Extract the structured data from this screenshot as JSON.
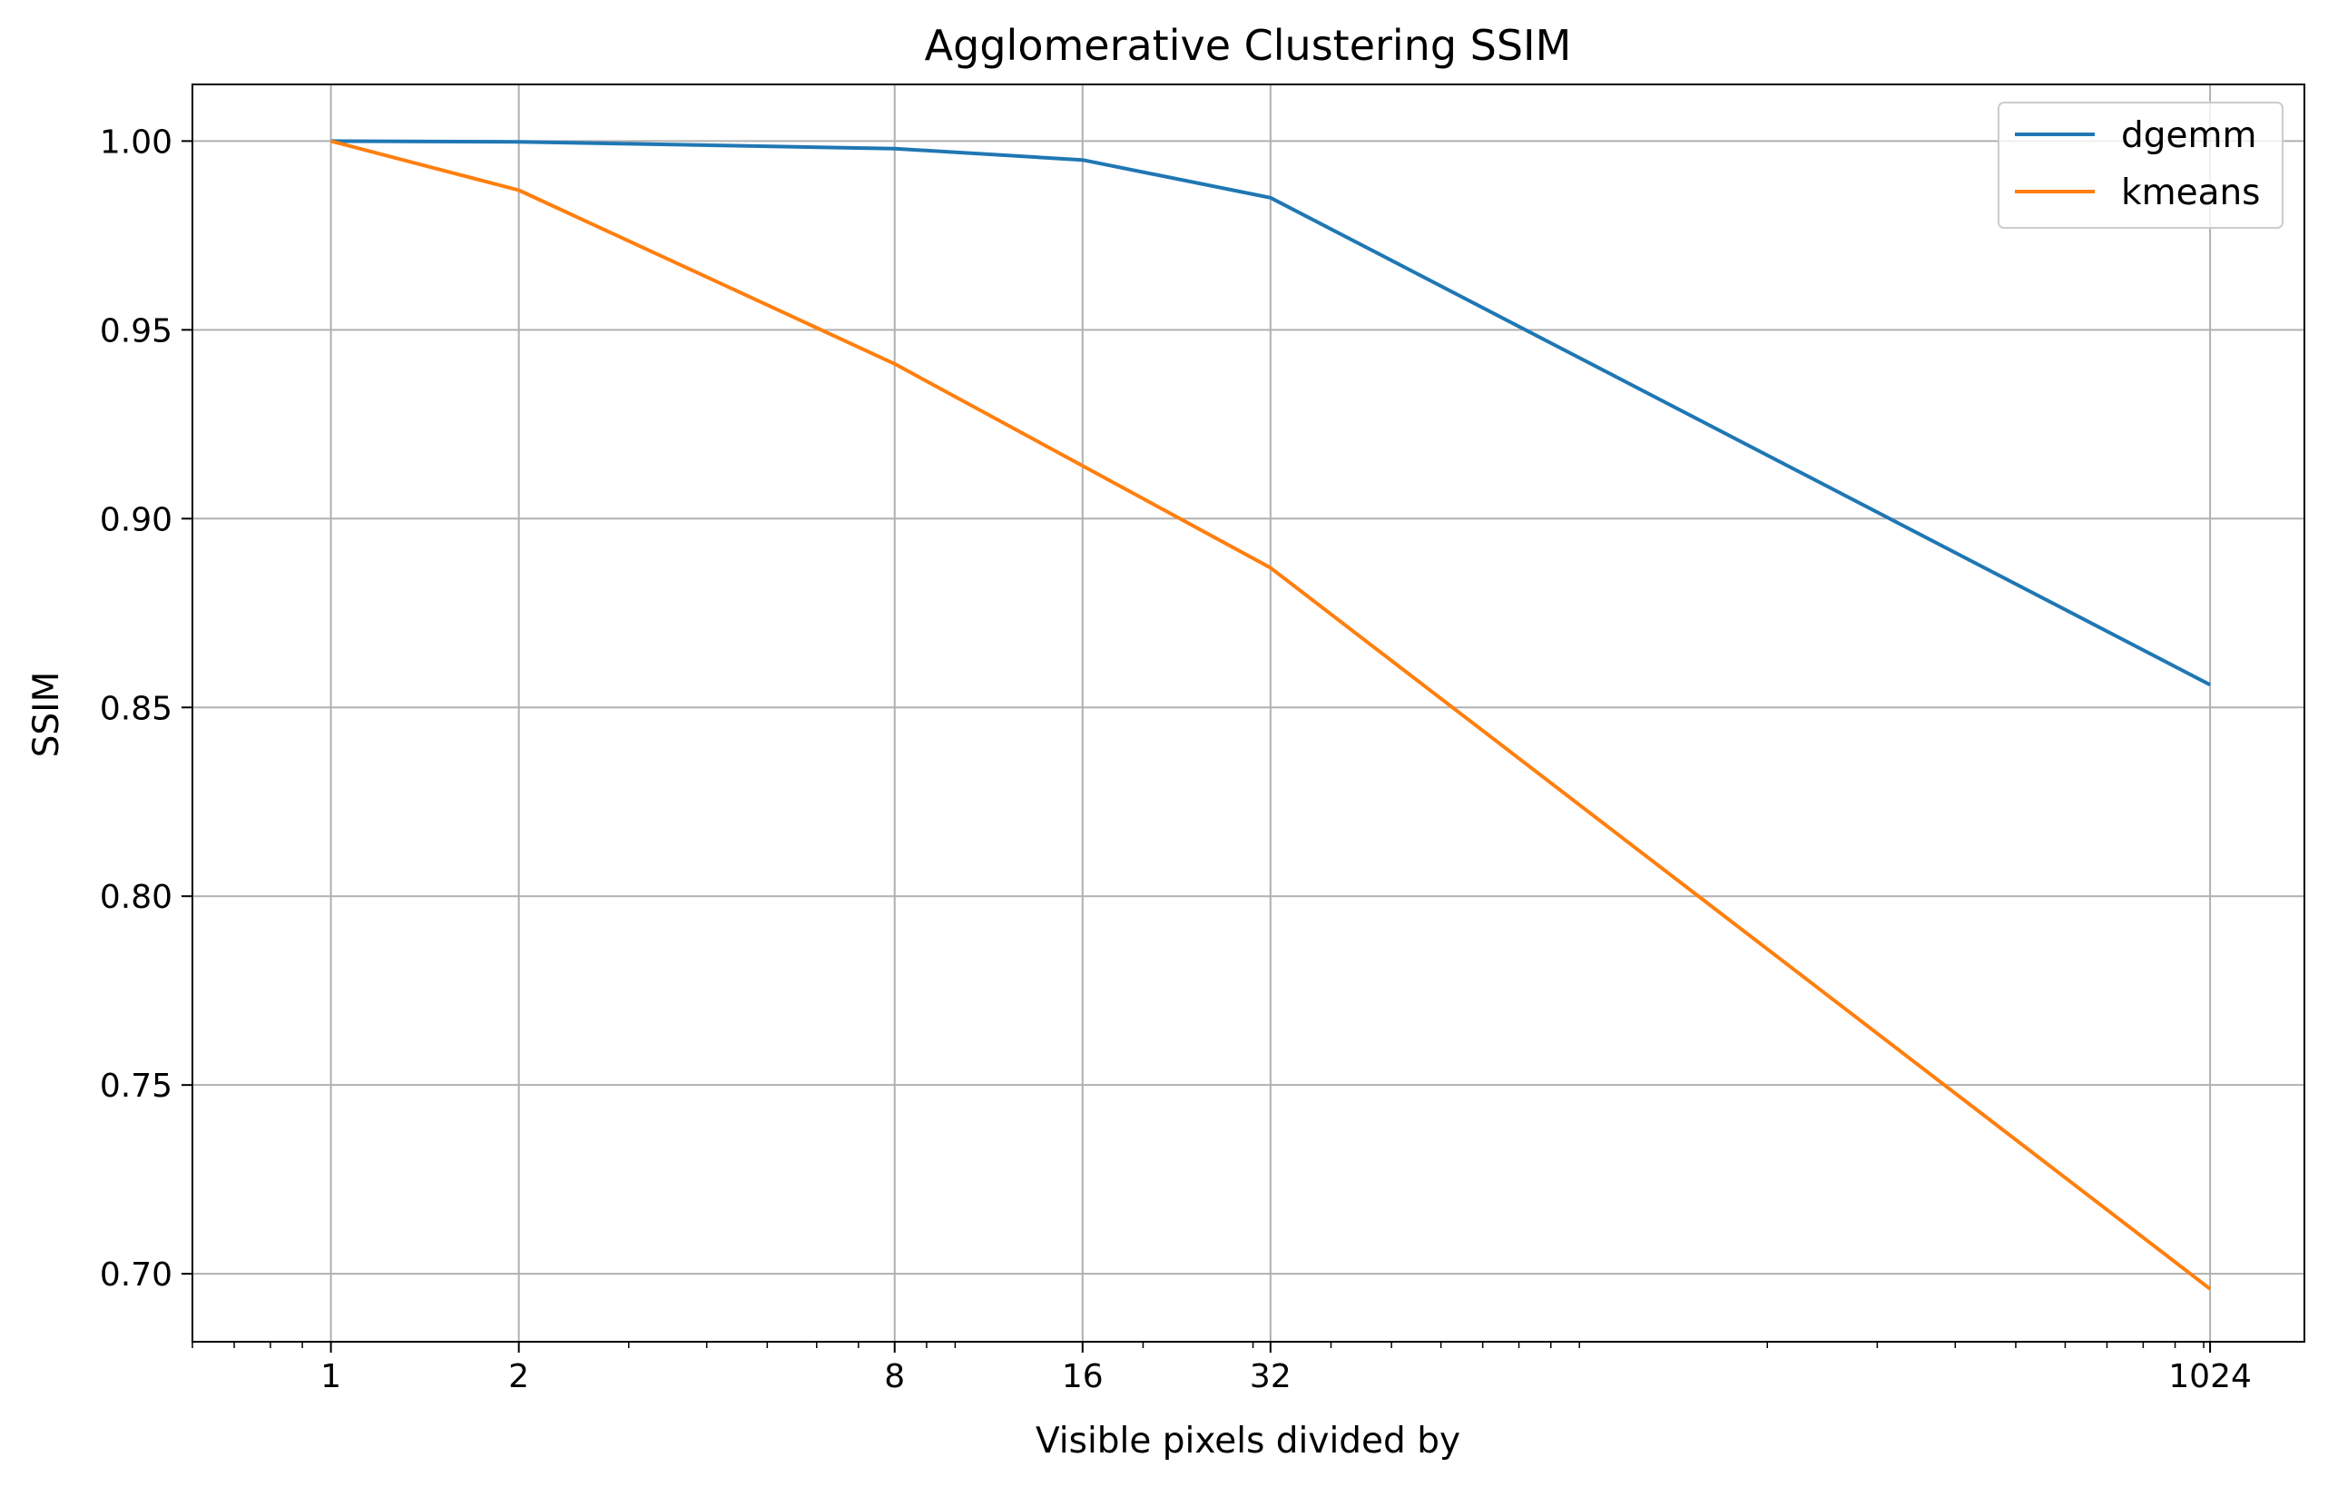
{
  "chart_data": {
    "type": "line",
    "title": "Agglomerative Clustering SSIM",
    "xlabel": "Visible pixels divided by",
    "ylabel": "SSIM",
    "x_scale": "log2",
    "x": [
      1,
      2,
      8,
      16,
      32,
      1024
    ],
    "x_tick_labels": [
      "1",
      "2",
      "8",
      "16",
      "32",
      "1024"
    ],
    "y_ticks": [
      0.7,
      0.75,
      0.8,
      0.85,
      0.9,
      0.95,
      1.0
    ],
    "y_tick_labels": [
      "0.70",
      "0.75",
      "0.80",
      "0.85",
      "0.90",
      "0.95",
      "1.00"
    ],
    "xlim": [
      0.6,
      1450
    ],
    "ylim": [
      0.682,
      1.015
    ],
    "grid": true,
    "legend_position": "top-right",
    "series": [
      {
        "name": "dgemm",
        "color": "#1f77b4",
        "values": [
          1.0,
          0.9998,
          0.998,
          0.995,
          0.985,
          0.856
        ]
      },
      {
        "name": "kmeans",
        "color": "#ff7f0e",
        "values": [
          1.0,
          0.987,
          0.941,
          0.914,
          0.887,
          0.696
        ]
      }
    ]
  }
}
